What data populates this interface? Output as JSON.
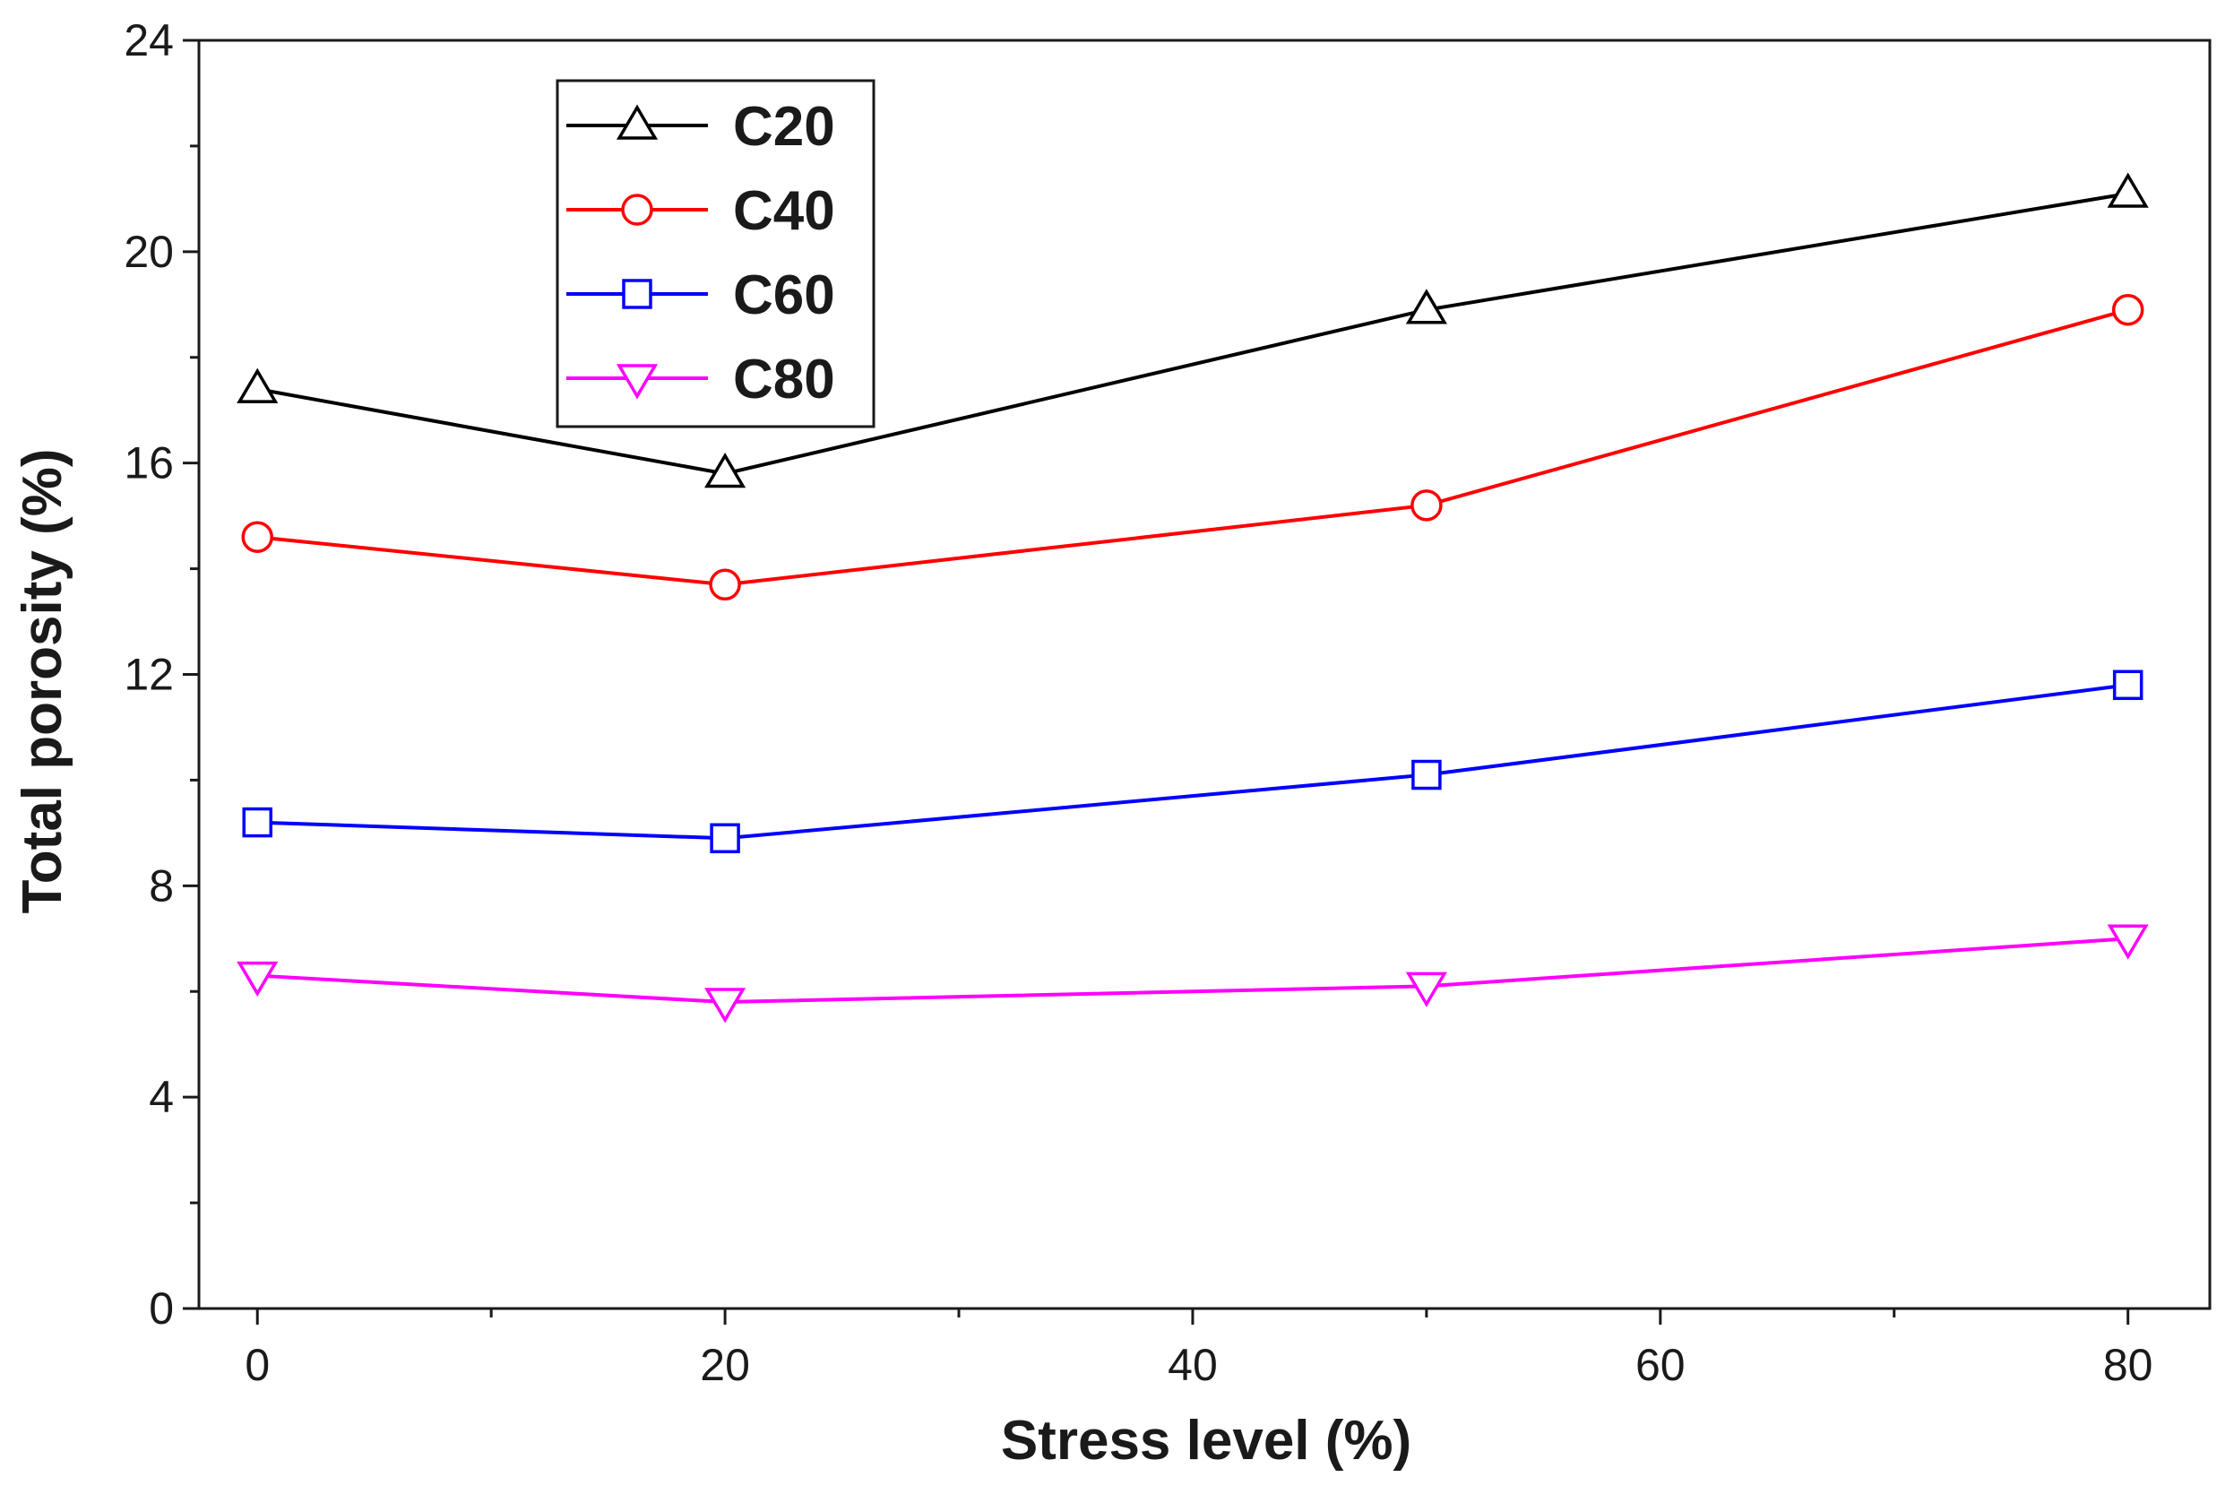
{
  "chart_data": {
    "type": "line",
    "title": "",
    "xlabel": "Stress level (%)",
    "ylabel": "Total porosity (%)",
    "xlim": [
      -2.5,
      83.5
    ],
    "ylim": [
      0,
      24
    ],
    "xticks": [
      0,
      20,
      40,
      60,
      80
    ],
    "yticks": [
      0,
      4,
      8,
      12,
      16,
      20,
      24
    ],
    "x_minor_ticks": [
      10,
      30,
      50,
      70
    ],
    "y_minor_ticks": [
      2,
      6,
      10,
      14,
      18,
      22
    ],
    "grid": false,
    "legend_position": "top-left",
    "x": [
      0,
      20,
      50,
      80
    ],
    "series": [
      {
        "name": "C20",
        "values": [
          17.4,
          15.8,
          18.9,
          21.1
        ],
        "color": "#000000",
        "marker": "triangle-up"
      },
      {
        "name": "C40",
        "values": [
          14.6,
          13.7,
          15.2,
          18.9
        ],
        "color": "#ff0000",
        "marker": "circle"
      },
      {
        "name": "C60",
        "values": [
          9.2,
          8.9,
          10.1,
          11.8
        ],
        "color": "#0000ff",
        "marker": "square"
      },
      {
        "name": "C80",
        "values": [
          6.3,
          5.8,
          6.1,
          7.0
        ],
        "color": "#ff00ff",
        "marker": "triangle-down"
      }
    ]
  }
}
